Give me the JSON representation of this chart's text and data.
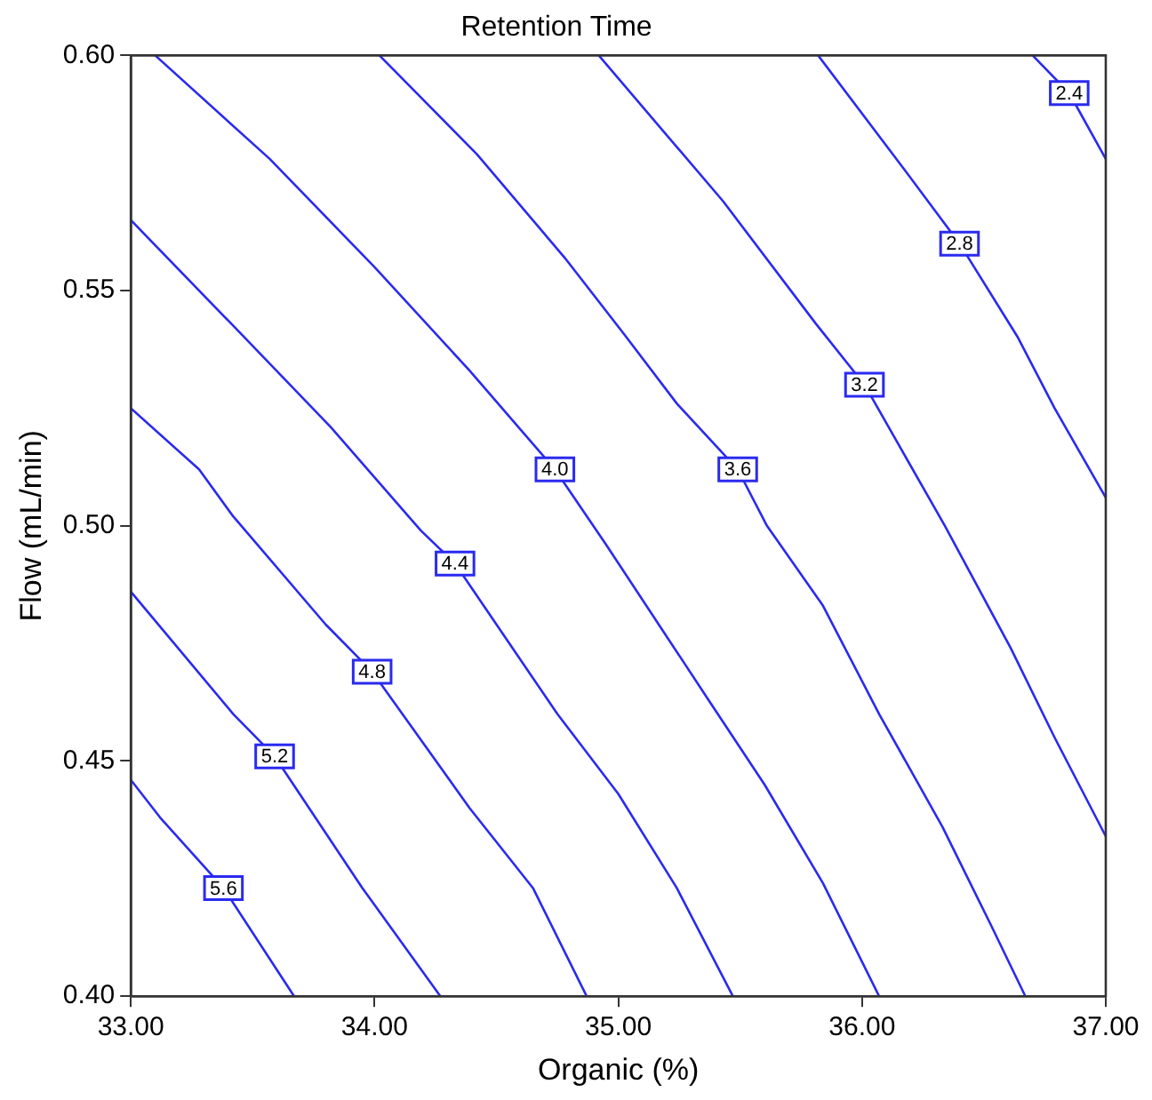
{
  "chart_data": {
    "type": "line",
    "title": "Retention Time",
    "xlabel": "Organic (%)",
    "ylabel": "Flow (mL/min)",
    "xlim": [
      33,
      37
    ],
    "xticks": [
      {
        "value": 33,
        "label": "33.00"
      },
      {
        "value": 34,
        "label": "34.00"
      },
      {
        "value": 35,
        "label": "35.00"
      },
      {
        "value": 36,
        "label": "36.00"
      },
      {
        "value": 37,
        "label": "37.00"
      }
    ],
    "ylim": [
      0.4,
      0.6
    ],
    "yticks": [
      {
        "value": 0.4,
        "label": "0.40"
      },
      {
        "value": 0.45,
        "label": "0.45"
      },
      {
        "value": 0.5,
        "label": "0.50"
      },
      {
        "value": 0.55,
        "label": "0.55"
      },
      {
        "value": 0.6,
        "label": "0.60"
      }
    ],
    "grid": false,
    "legend": false,
    "marker": "none",
    "line_style": "solid",
    "series": [
      {
        "color": "#2a2af0",
        "x": [
          33.0,
          33.12,
          33.38,
          33.67
        ],
        "values": [
          0.446,
          0.438,
          0.423,
          0.4
        ]
      },
      {
        "color": "#2a2af0",
        "x": [
          33.0,
          33.42,
          33.59,
          33.95,
          34.27
        ],
        "values": [
          0.486,
          0.46,
          0.451,
          0.423,
          0.4
        ]
      },
      {
        "color": "#2a2af0",
        "x": [
          33.0,
          33.28,
          33.42,
          33.8,
          33.99,
          34.39,
          34.65,
          34.87
        ],
        "values": [
          0.525,
          0.512,
          0.502,
          0.479,
          0.469,
          0.44,
          0.423,
          0.4
        ]
      },
      {
        "color": "#2a2af0",
        "x": [
          33.0,
          33.43,
          33.82,
          34.19,
          34.33,
          34.75,
          35.0,
          35.24,
          35.47
        ],
        "values": [
          0.565,
          0.542,
          0.521,
          0.499,
          0.492,
          0.46,
          0.443,
          0.423,
          0.4
        ]
      },
      {
        "color": "#2a2af0",
        "x": [
          33.1,
          33.57,
          34.0,
          34.39,
          34.74,
          34.95,
          35.37,
          35.6,
          35.84,
          36.07
        ],
        "values": [
          0.6,
          0.578,
          0.555,
          0.533,
          0.512,
          0.496,
          0.463,
          0.445,
          0.424,
          0.4
        ]
      },
      {
        "color": "#2a2af0",
        "x": [
          34.02,
          34.42,
          34.78,
          35.02,
          35.24,
          35.49,
          35.61,
          35.84,
          36.07,
          36.33,
          36.53,
          36.67
        ],
        "values": [
          0.6,
          0.579,
          0.557,
          0.541,
          0.526,
          0.512,
          0.5,
          0.483,
          0.46,
          0.436,
          0.415,
          0.4
        ]
      },
      {
        "color": "#2a2af0",
        "x": [
          34.92,
          35.43,
          35.81,
          36.01,
          36.34,
          36.61,
          36.79,
          37.0
        ],
        "values": [
          0.6,
          0.569,
          0.543,
          0.53,
          0.5,
          0.474,
          0.455,
          0.434
        ]
      },
      {
        "color": "#2a2af0",
        "x": [
          35.82,
          36.17,
          36.4,
          36.64,
          36.79,
          37.0
        ],
        "values": [
          0.6,
          0.576,
          0.56,
          0.54,
          0.525,
          0.506
        ]
      },
      {
        "color": "#2a2af0",
        "x": [
          36.7,
          36.85,
          37.0
        ],
        "values": [
          0.6,
          0.592,
          0.578
        ]
      }
    ],
    "annotations": [
      {
        "text": "5.6",
        "x": 33.38,
        "y": 0.423
      },
      {
        "text": "5.2",
        "x": 33.59,
        "y": 0.451
      },
      {
        "text": "4.8",
        "x": 33.99,
        "y": 0.469
      },
      {
        "text": "4.4",
        "x": 34.33,
        "y": 0.492
      },
      {
        "text": "4.0",
        "x": 34.74,
        "y": 0.512
      },
      {
        "text": "3.6",
        "x": 35.49,
        "y": 0.512
      },
      {
        "text": "3.2",
        "x": 36.01,
        "y": 0.53
      },
      {
        "text": "2.8",
        "x": 36.4,
        "y": 0.56
      },
      {
        "text": "2.4",
        "x": 36.85,
        "y": 0.592
      }
    ]
  }
}
